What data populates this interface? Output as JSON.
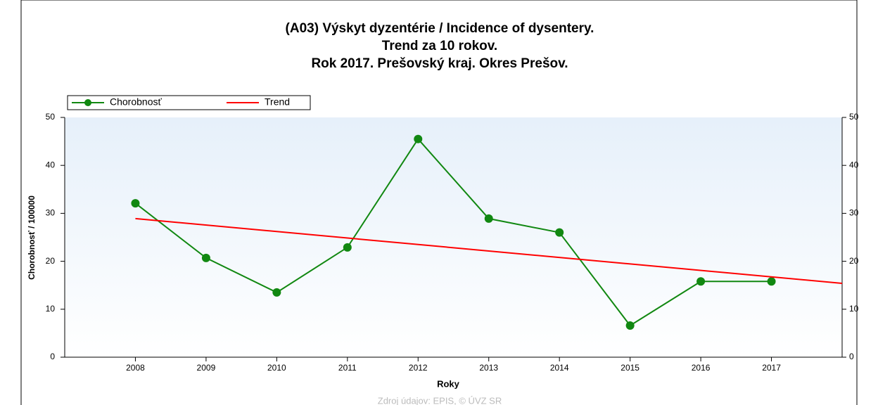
{
  "chart_data": {
    "type": "line",
    "title": [
      "(A03) Výskyt dyzentérie / Incidence of dysentery.",
      "Trend za 10 rokov.",
      "Rok 2017. Prešovský kraj. Okres Prešov."
    ],
    "xlabel": "Roky",
    "ylabel": "Chorobnosť / 100000",
    "source": "Zdroj údajov: EPIS, © ÚVZ SR",
    "series": [
      {
        "name": "Chorobnosť",
        "color": "#118811",
        "marker": true,
        "x": [
          2008,
          2009,
          2010,
          2011,
          2012,
          2013,
          2014,
          2015,
          2016,
          2017
        ],
        "values": [
          32.1,
          20.7,
          13.5,
          22.9,
          45.5,
          28.9,
          26.0,
          6.6,
          15.8,
          15.8
        ]
      },
      {
        "name": "Trend",
        "color": "#ff0000",
        "marker": false,
        "x": [
          2008,
          2018
        ],
        "values": [
          28.9,
          15.4
        ]
      }
    ],
    "xlim": [
      2007,
      2018
    ],
    "xticks": [
      2008,
      2009,
      2010,
      2011,
      2012,
      2013,
      2014,
      2015,
      2016,
      2017
    ],
    "ylim": [
      0,
      50
    ],
    "yticks": [
      0,
      10,
      20,
      30,
      40,
      50
    ],
    "y2lim": [
      0,
      50
    ],
    "y2ticks": [
      0,
      10,
      20,
      30,
      40,
      50
    ],
    "legend": "top-left"
  }
}
